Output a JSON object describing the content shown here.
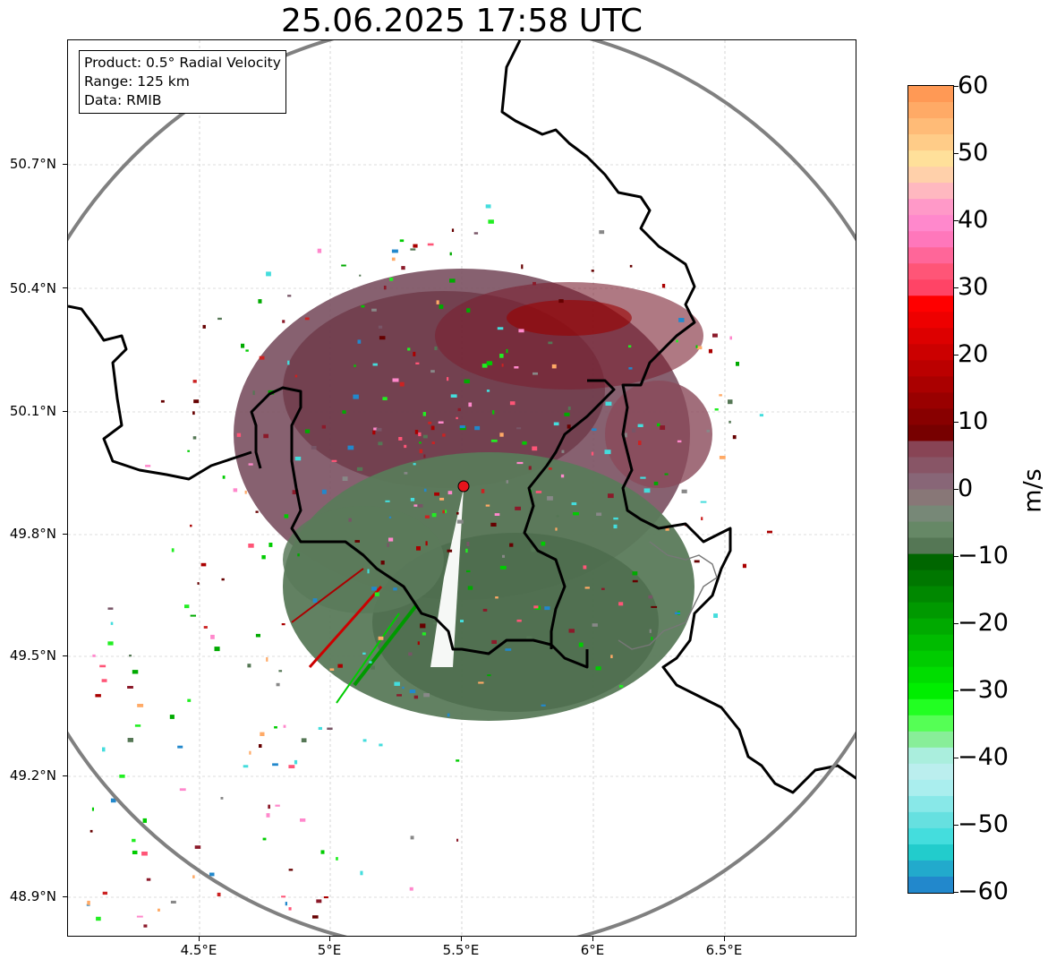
{
  "title": "25.06.2025 17:58 UTC",
  "info_box": {
    "product": "Product: 0.5° Radial Velocity",
    "range": "Range: 125 km",
    "data": "Data: RMIB"
  },
  "map": {
    "lat_ticks": [
      "50.7°N",
      "50.4°N",
      "50.1°N",
      "49.8°N",
      "49.5°N",
      "49.2°N",
      "48.9°N"
    ],
    "lon_ticks": [
      "4.5°E",
      "5°E",
      "5.5°E",
      "6°E",
      "6.5°E"
    ],
    "radar_marker_color": "#e8141c",
    "range_ring_color": "#808080",
    "border_color": "#000000"
  },
  "colorbar": {
    "unit": "m/s",
    "ticks": [
      "60",
      "50",
      "40",
      "30",
      "20",
      "10",
      "0",
      "−10",
      "−20",
      "−30",
      "−40",
      "−50",
      "−60"
    ],
    "colors_top_to_bottom": [
      "#ff9955",
      "#ffaa66",
      "#ffbb77",
      "#ffcc88",
      "#ffe09a",
      "#ffd0aa",
      "#ffb8c0",
      "#ff99c8",
      "#ff88cc",
      "#ff77bb",
      "#ff6699",
      "#ff5577",
      "#ff4466",
      "#ff0000",
      "#ee0000",
      "#dd0000",
      "#cc0000",
      "#bb0000",
      "#aa0000",
      "#990000",
      "#880000",
      "#770000",
      "#884455",
      "#885566",
      "#886677",
      "#887777",
      "#778877",
      "#668866",
      "#557755",
      "#006600",
      "#007700",
      "#008800",
      "#009900",
      "#00aa00",
      "#00bb00",
      "#00cc00",
      "#00dd00",
      "#00ee00",
      "#22ff22",
      "#55ff55",
      "#88ee99",
      "#aaeedd",
      "#bbeeee",
      "#aaeeee",
      "#88e8e8",
      "#66e0e0",
      "#44dddd",
      "#22cccc",
      "#22aacc",
      "#2288cc"
    ]
  }
}
